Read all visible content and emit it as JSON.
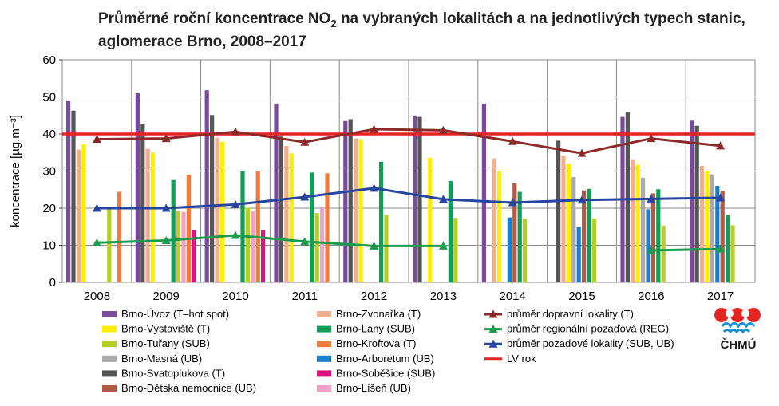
{
  "chart_data": {
    "type": "bar",
    "title": "Průměrné roční koncentrace NO",
    "title_sub": "2",
    "title_rest": " na vybraných lokalitách a na jednotlivých typech stanic, aglomerace Brno, 2008–2017",
    "ylabel": "koncentrace [µg.m⁻³]",
    "xlabel": "",
    "ylim": [
      0,
      60
    ],
    "yticks": [
      "0",
      "10",
      "20",
      "30",
      "40",
      "50",
      "60"
    ],
    "grid": true,
    "legend_position": "bottom",
    "categories": [
      "2008",
      "2009",
      "2010",
      "2011",
      "2012",
      "2013",
      "2014",
      "2015",
      "2016",
      "2017"
    ],
    "series": [
      {
        "name": "Brno-Úvoz (T–hot spot)",
        "color": "#7b4a9c",
        "values": [
          49,
          51,
          51.8,
          48.2,
          43.5,
          45,
          48.2,
          null,
          44.6,
          43.6
        ]
      },
      {
        "name": "Brno-Svatoplukova (T)",
        "color": "#555555",
        "values": [
          46.3,
          42.8,
          45.1,
          39.3,
          44,
          44.6,
          null,
          38.2,
          45.8,
          42.2
        ]
      },
      {
        "name": "Brno-Zvonařka (T)",
        "color": "#f4ae8d",
        "values": [
          35.8,
          36,
          39,
          36.8,
          38.8,
          null,
          33.4,
          34.2,
          33.2,
          31.4
        ]
      },
      {
        "name": "Brno-Výstaviště (T)",
        "color": "#ffee00",
        "values": [
          37.2,
          35,
          37.9,
          34.8,
          38.6,
          33.6,
          29.9,
          32,
          31.7,
          30.1
        ]
      },
      {
        "name": "Brno-Masná (UB)",
        "color": "#aaaaaa",
        "values": [
          null,
          null,
          null,
          null,
          null,
          null,
          null,
          28.4,
          28.2,
          29.1
        ]
      },
      {
        "name": "Brno-Arboretum (UB)",
        "color": "#1a7fce",
        "values": [
          null,
          null,
          null,
          null,
          null,
          null,
          17.5,
          14.9,
          19.7,
          26
        ]
      },
      {
        "name": "Brno-Dětská nemocnice (UB)",
        "color": "#b05a48",
        "values": [
          null,
          null,
          null,
          null,
          null,
          null,
          26.7,
          24.8,
          24,
          24.7
        ]
      },
      {
        "name": "Brno-Lány (SUB)",
        "color": "#0f9e55",
        "values": [
          null,
          27.6,
          30,
          29.6,
          32.5,
          27.3,
          24.4,
          25.2,
          25.1,
          18.2
        ]
      },
      {
        "name": "Brno-Tuřany (SUB)",
        "color": "#b6cf25",
        "values": [
          19.8,
          19.3,
          20.1,
          18.7,
          18.2,
          17.4,
          17.2,
          17.2,
          15.3,
          15.4
        ]
      },
      {
        "name": "Brno-Líšeň (UB)",
        "color": "#f2a2c8",
        "values": [
          null,
          19,
          19.3,
          20.4,
          null,
          null,
          null,
          null,
          null,
          null
        ]
      },
      {
        "name": "Brno-Kroftova (T)",
        "color": "#f07b3a",
        "values": [
          24.4,
          29,
          30,
          29.4,
          null,
          null,
          null,
          null,
          null,
          null
        ]
      },
      {
        "name": "Brno-Soběšice (SUB)",
        "color": "#e0127f",
        "values": [
          null,
          14.2,
          14.2,
          null,
          null,
          null,
          null,
          null,
          null,
          null
        ]
      }
    ],
    "lines": [
      {
        "name": "průměr dopravní lokality (T)",
        "color": "#8b2a28",
        "values": [
          38.6,
          38.8,
          40.6,
          37.8,
          41.3,
          41,
          38,
          34.8,
          38.8,
          36.8
        ]
      },
      {
        "name": "průměr regionální pozaďová (REG)",
        "color": "#1b9c4d",
        "values": [
          10.7,
          11.3,
          12.7,
          11,
          9.8,
          9.8,
          null,
          null,
          8.6,
          9
        ]
      },
      {
        "name": "průměr pozaďové lokality (SUB, UB)",
        "color": "#2645a0",
        "values": [
          20,
          20,
          21,
          23,
          25.4,
          22.4,
          21.5,
          22.2,
          22.5,
          22.8
        ]
      }
    ],
    "limit_line": {
      "name": "LV rok",
      "color": "#e52421",
      "value": 40
    },
    "legend_col1": [
      "Brno-Úvoz (T–hot spot)",
      "Brno-Výstaviště (T)",
      "Brno-Tuřany (SUB)",
      "Brno-Masná (UB)",
      "Brno-Svatoplukova (T)",
      "Brno-Dětská nemocnice (UB)"
    ],
    "legend_col2": [
      "Brno-Zvonařka (T)",
      "Brno-Lány (SUB)",
      "Brno-Kroftova (T)",
      "Brno-Arboretum (UB)",
      "Brno-Soběšice (SUB)",
      "Brno-Líšeň (UB)"
    ],
    "legend_col3": [
      "průměr dopravní lokality (T)",
      "průměr regionální pozaďová (REG)",
      "průměr pozaďové lokality (SUB, UB)",
      "LV rok"
    ]
  },
  "logo": {
    "text": "ČHMÚ",
    "red": "#e52421",
    "blue": "#1a8fd6"
  }
}
